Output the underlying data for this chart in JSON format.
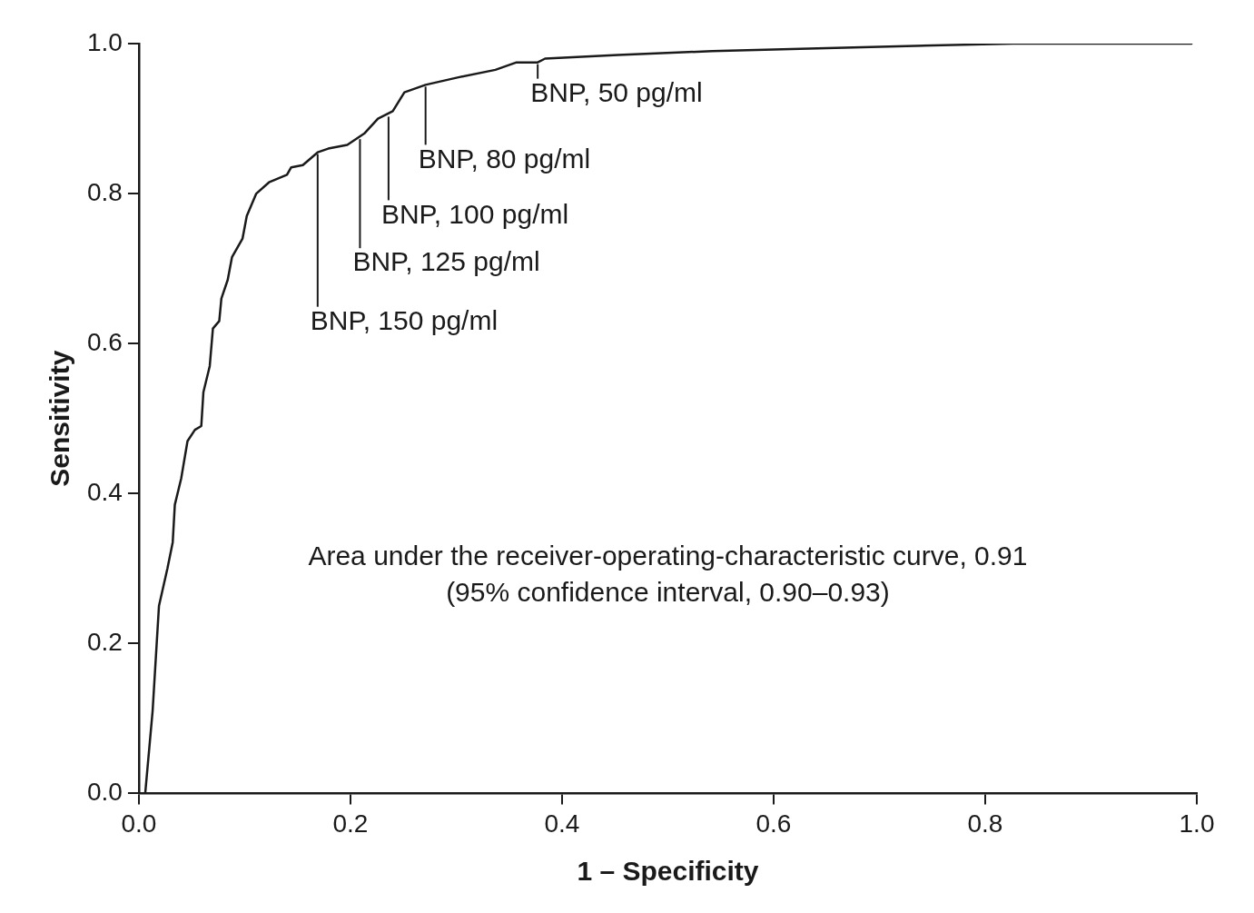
{
  "chart_data": {
    "type": "line",
    "xlabel": "1 – Specificity",
    "ylabel": "Sensitivity",
    "xlim": [
      0,
      1
    ],
    "ylim": [
      0,
      1
    ],
    "xticks": [
      {
        "value": 0,
        "label": "0.0"
      },
      {
        "value": 0.2,
        "label": "0.2"
      },
      {
        "value": 0.4,
        "label": "0.4"
      },
      {
        "value": 0.6,
        "label": "0.6"
      },
      {
        "value": 0.8,
        "label": "0.8"
      },
      {
        "value": 1,
        "label": "1.0"
      }
    ],
    "yticks": [
      {
        "value": 0,
        "label": "0.0"
      },
      {
        "value": 0.2,
        "label": "0.2"
      },
      {
        "value": 0.4,
        "label": "0.4"
      },
      {
        "value": 0.6,
        "label": "0.6"
      },
      {
        "value": 0.8,
        "label": "0.8"
      },
      {
        "value": 1,
        "label": "1.0"
      }
    ],
    "grid": false,
    "legend": false,
    "marker": "none",
    "line_style": "solid",
    "series": [
      {
        "color": "#1a1a1a",
        "x": [
          0.006,
          0.013,
          0.019,
          0.027,
          0.032,
          0.034,
          0.04,
          0.046,
          0.053,
          0.059,
          0.061,
          0.067,
          0.07,
          0.076,
          0.078,
          0.084,
          0.088,
          0.098,
          0.102,
          0.111,
          0.123,
          0.14,
          0.144,
          0.155,
          0.169,
          0.179,
          0.197,
          0.213,
          0.226,
          0.24,
          0.251,
          0.271,
          0.302,
          0.337,
          0.357,
          0.377,
          0.384,
          0.453,
          0.542,
          0.675,
          0.826,
          0.995
        ],
        "values": [
          0,
          0.11,
          0.25,
          0.3,
          0.335,
          0.385,
          0.42,
          0.47,
          0.485,
          0.49,
          0.535,
          0.57,
          0.62,
          0.63,
          0.66,
          0.685,
          0.715,
          0.74,
          0.77,
          0.8,
          0.815,
          0.825,
          0.835,
          0.838,
          0.855,
          0.86,
          0.865,
          0.88,
          0.9,
          0.91,
          0.935,
          0.945,
          0.955,
          0.965,
          0.975,
          0.975,
          0.98,
          0.985,
          0.99,
          0.995,
          1,
          1
        ]
      }
    ],
    "annotations": [
      {
        "text": "BNP, 50 pg/ml",
        "x": 0.377,
        "y": 0.975
      },
      {
        "text": "BNP, 80 pg/ml",
        "x": 0.271,
        "y": 0.945
      },
      {
        "text": "BNP, 100 pg/ml",
        "x": 0.236,
        "y": 0.905
      },
      {
        "text": "BNP, 125 pg/ml",
        "x": 0.209,
        "y": 0.875
      },
      {
        "text": "BNP, 150 pg/ml",
        "x": 0.169,
        "y": 0.855
      },
      "Area under the receiver-operating-characteristic curve, 0.91 (95% confidence interval, 0.90–0.93)"
    ]
  }
}
